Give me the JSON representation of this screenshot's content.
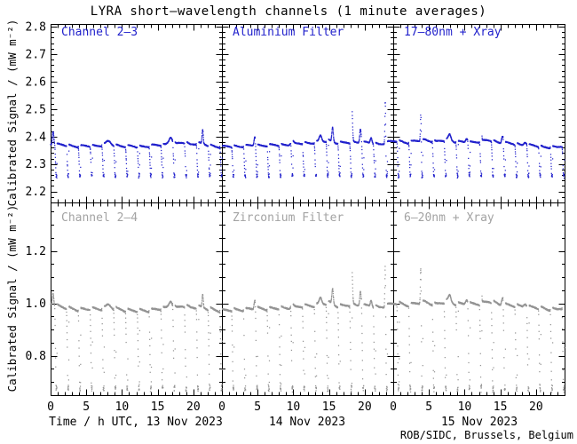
{
  "chart_data": {
    "type": "scatter",
    "title": "LYRA short–wavelength channels (1 minute averages)",
    "ylabel": "Calibrated Signal / (mW m⁻²)",
    "credit": "ROB/SIDC, Brussels, Belgium",
    "background": "#ffffff",
    "axis_color": "#000000",
    "legend_position": "none",
    "grid": false,
    "x_axis": {
      "hours_range": [
        0,
        24
      ],
      "major_ticks": [
        0,
        5,
        10,
        15,
        20
      ],
      "minor_step_h": 1,
      "day_labels": [
        "Time / h UTC, 13 Nov 2023",
        "14 Nov 2023",
        "15 Nov 2023"
      ]
    },
    "rows": [
      {
        "channel": "Channel 2–3",
        "color": "#2222cc",
        "label_color": "#2222cc",
        "seed": 11,
        "panel_labels": [
          "Channel 2–3",
          "Aluminium Filter",
          "17–80nm + Xray"
        ],
        "ylim": [
          2.16,
          2.81
        ],
        "major_ticks": [
          2.2,
          2.3,
          2.4,
          2.5,
          2.6,
          2.7,
          2.8
        ],
        "minor_step": 0.02,
        "tick_decimals": 1,
        "baseline_keyframes": [
          [
            0,
            2.372
          ],
          [
            2,
            2.368
          ],
          [
            4,
            2.364
          ],
          [
            6,
            2.366
          ],
          [
            8,
            2.37
          ],
          [
            10,
            2.366
          ],
          [
            12,
            2.362
          ],
          [
            14,
            2.366
          ],
          [
            16,
            2.37
          ],
          [
            16.9,
            2.382
          ],
          [
            17.6,
            2.372
          ],
          [
            18.6,
            2.378
          ],
          [
            19.6,
            2.372
          ],
          [
            20.6,
            2.376
          ],
          [
            22,
            2.368
          ],
          [
            24,
            2.362
          ],
          [
            26,
            2.364
          ],
          [
            28,
            2.366
          ],
          [
            30,
            2.368
          ],
          [
            32,
            2.368
          ],
          [
            34,
            2.372
          ],
          [
            36,
            2.376
          ],
          [
            38,
            2.38
          ],
          [
            39,
            2.385
          ],
          [
            40,
            2.378
          ],
          [
            41,
            2.376
          ],
          [
            42.8,
            2.38
          ],
          [
            44.5,
            2.376
          ],
          [
            46,
            2.372
          ],
          [
            47.5,
            2.38
          ],
          [
            48.5,
            2.384
          ],
          [
            50,
            2.378
          ],
          [
            52.5,
            2.388
          ],
          [
            54,
            2.38
          ],
          [
            55.5,
            2.388
          ],
          [
            57,
            2.38
          ],
          [
            58.5,
            2.378
          ],
          [
            60,
            2.382
          ],
          [
            61.5,
            2.386
          ],
          [
            63,
            2.378
          ],
          [
            65,
            2.372
          ],
          [
            67,
            2.368
          ],
          [
            69,
            2.362
          ],
          [
            71,
            2.36
          ],
          [
            72,
            2.368
          ]
        ],
        "flares": [
          [
            0.35,
            0.05,
            0.1
          ],
          [
            8.1,
            0.012,
            0.3
          ],
          [
            16.8,
            0.018,
            0.22
          ],
          [
            21.3,
            0.05,
            0.08
          ],
          [
            28.6,
            0.035,
            0.1
          ],
          [
            33.8,
            0.012,
            0.2
          ],
          [
            37.8,
            0.022,
            0.18
          ],
          [
            39.5,
            0.052,
            0.1
          ],
          [
            42.2,
            0.125,
            0.09
          ],
          [
            43.4,
            0.052,
            0.1
          ],
          [
            44.9,
            0.02,
            0.12
          ],
          [
            46.9,
            0.185,
            0.06
          ],
          [
            51.9,
            0.172,
            0.07
          ],
          [
            55.9,
            0.022,
            0.18
          ],
          [
            58.3,
            0.015,
            0.15
          ],
          [
            60.3,
            0.162,
            0.06
          ],
          [
            63.3,
            0.028,
            0.12
          ],
          [
            66.5,
            0.012,
            0.2
          ]
        ],
        "dips": {
          "period_h": 1.653,
          "phase_offset_h": 0.915,
          "min_value": 2.258,
          "min_jitter": 0.006
        },
        "orbital_sawtooth_amp": 0.012,
        "noise_amp": 0.0018
      },
      {
        "channel": "Channel 2–4",
        "color": "#949494",
        "label_color": "#a3a3a3",
        "seed": 29,
        "panel_labels": [
          "Channel 2–4",
          "Zirconium Filter",
          "6–20nm + Xray"
        ],
        "ylim": [
          0.65,
          1.385
        ],
        "major_ticks": [
          0.8,
          1.0,
          1.2
        ],
        "minor_step": 0.05,
        "tick_decimals": 1,
        "baseline_keyframes": [
          [
            0,
            1.0
          ],
          [
            1,
            0.99
          ],
          [
            2,
            0.982
          ],
          [
            4,
            0.976
          ],
          [
            6,
            0.978
          ],
          [
            8,
            0.982
          ],
          [
            10,
            0.976
          ],
          [
            12,
            0.97
          ],
          [
            14,
            0.974
          ],
          [
            16,
            0.98
          ],
          [
            16.9,
            0.994
          ],
          [
            17.6,
            0.982
          ],
          [
            18.6,
            0.99
          ],
          [
            19.6,
            0.984
          ],
          [
            20.6,
            0.988
          ],
          [
            22,
            0.978
          ],
          [
            24,
            0.972
          ],
          [
            26,
            0.974
          ],
          [
            28,
            0.978
          ],
          [
            30,
            0.98
          ],
          [
            32,
            0.98
          ],
          [
            34,
            0.984
          ],
          [
            36,
            0.99
          ],
          [
            38,
            0.996
          ],
          [
            39,
            1.002
          ],
          [
            40,
            0.992
          ],
          [
            41,
            0.99
          ],
          [
            42.8,
            0.994
          ],
          [
            44.5,
            0.99
          ],
          [
            46,
            0.984
          ],
          [
            47.5,
            0.996
          ],
          [
            48.5,
            1.0
          ],
          [
            50,
            0.994
          ],
          [
            52.5,
            1.004
          ],
          [
            54,
            0.996
          ],
          [
            55.5,
            1.006
          ],
          [
            57,
            0.998
          ],
          [
            58.5,
            0.996
          ],
          [
            60,
            1.0
          ],
          [
            61.5,
            1.006
          ],
          [
            63,
            0.996
          ],
          [
            65,
            0.99
          ],
          [
            67,
            0.986
          ],
          [
            69,
            0.98
          ],
          [
            71,
            0.976
          ],
          [
            72,
            0.986
          ]
        ],
        "flares": [
          [
            0.35,
            0.045,
            0.1
          ],
          [
            8.1,
            0.012,
            0.3
          ],
          [
            16.8,
            0.018,
            0.22
          ],
          [
            21.3,
            0.048,
            0.08
          ],
          [
            28.6,
            0.035,
            0.1
          ],
          [
            33.8,
            0.012,
            0.2
          ],
          [
            37.8,
            0.025,
            0.18
          ],
          [
            39.5,
            0.058,
            0.1
          ],
          [
            42.2,
            0.135,
            0.09
          ],
          [
            43.4,
            0.058,
            0.1
          ],
          [
            44.9,
            0.022,
            0.12
          ],
          [
            46.9,
            0.205,
            0.06
          ],
          [
            51.9,
            0.255,
            0.07
          ],
          [
            55.9,
            0.026,
            0.18
          ],
          [
            58.3,
            0.018,
            0.15
          ],
          [
            60.3,
            0.225,
            0.06
          ],
          [
            63.3,
            0.032,
            0.12
          ],
          [
            66.5,
            0.014,
            0.2
          ]
        ],
        "dips": {
          "period_h": 1.653,
          "phase_offset_h": 0.915,
          "min_value": 0.676,
          "min_jitter": 0.008
        },
        "orbital_sawtooth_amp": 0.018,
        "noise_amp": 0.0025
      }
    ]
  }
}
